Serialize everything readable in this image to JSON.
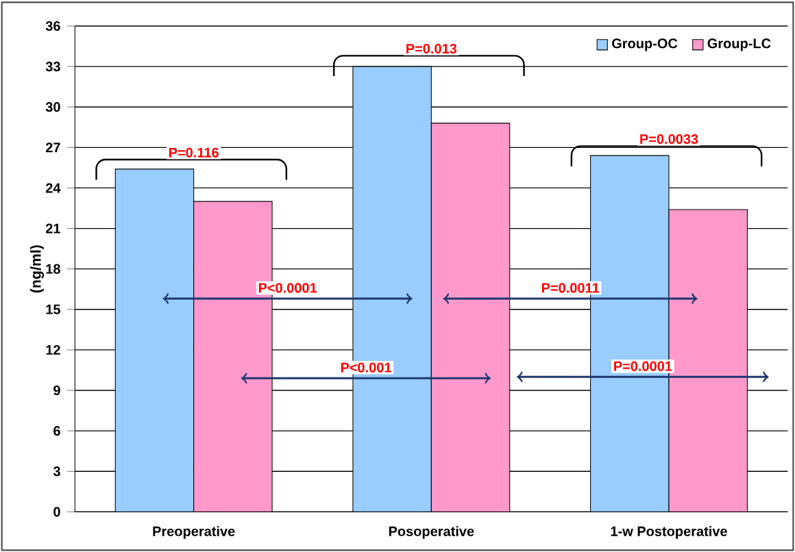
{
  "chart_data": {
    "type": "bar",
    "ylabel": "(ng/ml)",
    "categories": [
      "Preoperative",
      "Posoperative",
      "1-w Postoperative"
    ],
    "series": [
      {
        "name": "Group-OC",
        "color": "#99ccff",
        "values": [
          25.4,
          33.0,
          26.4
        ]
      },
      {
        "name": "Group-LC",
        "color": "#ff99cc",
        "values": [
          23.0,
          28.8,
          22.4
        ]
      }
    ],
    "ylim": [
      0,
      36
    ],
    "yticks": [
      0,
      3,
      6,
      9,
      12,
      15,
      18,
      21,
      24,
      27,
      30,
      33,
      36
    ],
    "grid": "y",
    "legend": "top right",
    "annotations": [
      "P=0.116",
      "P=0.013",
      "P=0.0033",
      "P<0.0001",
      "P<0.001",
      "P=0.0011",
      "P=0.0001"
    ]
  }
}
